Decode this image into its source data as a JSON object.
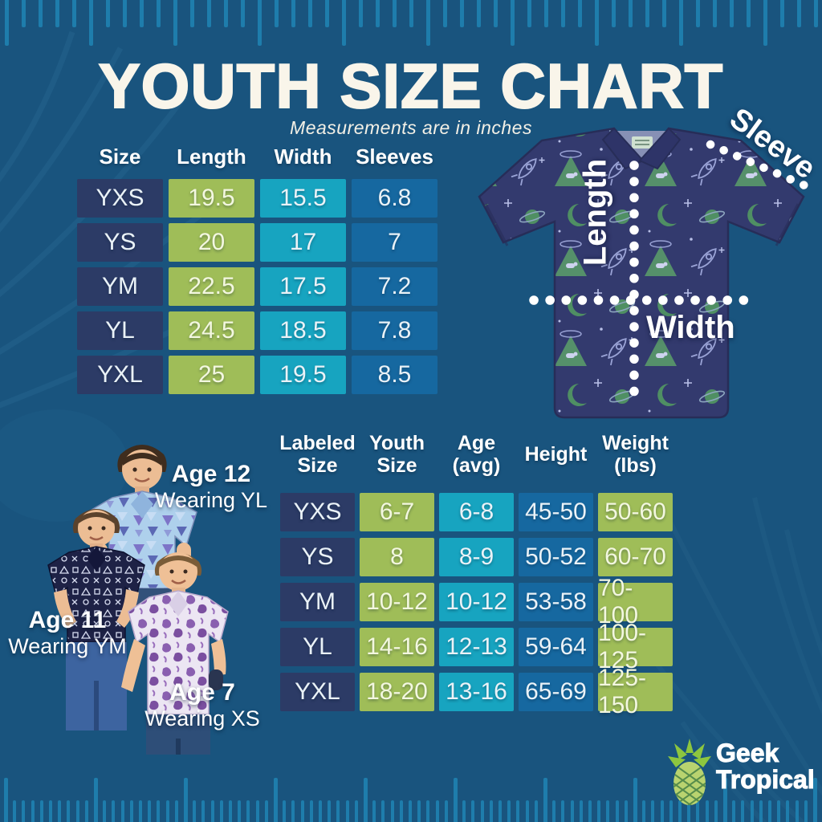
{
  "title": "YOUTH SIZE CHART",
  "subtitle": "Measurements are in inches",
  "shirt_diagram": {
    "length_label": "Length",
    "width_label": "Width",
    "sleeve_label": "Sleeve"
  },
  "chart_data": [
    {
      "type": "table",
      "title": "Youth garment measurements (inches)",
      "columns": [
        "Size",
        "Length",
        "Width",
        "Sleeves"
      ],
      "rows": [
        [
          "YXS",
          "19.5",
          "15.5",
          "6.8"
        ],
        [
          "YS",
          "20",
          "17",
          "7"
        ],
        [
          "YM",
          "22.5",
          "17.5",
          "7.2"
        ],
        [
          "YL",
          "24.5",
          "18.5",
          "7.8"
        ],
        [
          "YXL",
          "25",
          "19.5",
          "8.5"
        ]
      ]
    },
    {
      "type": "table",
      "title": "Youth size to age, height and weight",
      "columns": [
        "Labeled Size",
        "Youth Size",
        "Age (avg)",
        "Height",
        "Weight (lbs)"
      ],
      "rows": [
        [
          "YXS",
          "6-7",
          "6-8",
          "45-50",
          "50-60"
        ],
        [
          "YS",
          "8",
          "8-9",
          "50-52",
          "60-70"
        ],
        [
          "YM",
          "10-12",
          "10-12",
          "53-58",
          "70-100"
        ],
        [
          "YL",
          "14-16",
          "12-13",
          "59-64",
          "100-125"
        ],
        [
          "YXL",
          "18-20",
          "13-16",
          "65-69",
          "125-150"
        ]
      ]
    }
  ],
  "models": [
    {
      "age": "Age 12",
      "wearing": "Wearing YL"
    },
    {
      "age": "Age 11",
      "wearing": "Wearing YM"
    },
    {
      "age": "Age 7",
      "wearing": "Wearing XS"
    }
  ],
  "brand": {
    "line1": "Geek",
    "line2": "Tropical"
  },
  "colors": {
    "background": "#19547e",
    "ruler_tick": "#1e7dac",
    "table_navy": "#2c3b66",
    "table_green": "#9fbd58",
    "table_cyan": "#17a4c0",
    "table_blue": "#1668a0",
    "title_text": "#f9f5ea",
    "shirt_fabric": "#333a6e",
    "shirt_motif_green": "#4f8f63",
    "logo_leaf_green": "#8dc63f",
    "logo_body_green": "#b9d36f"
  }
}
